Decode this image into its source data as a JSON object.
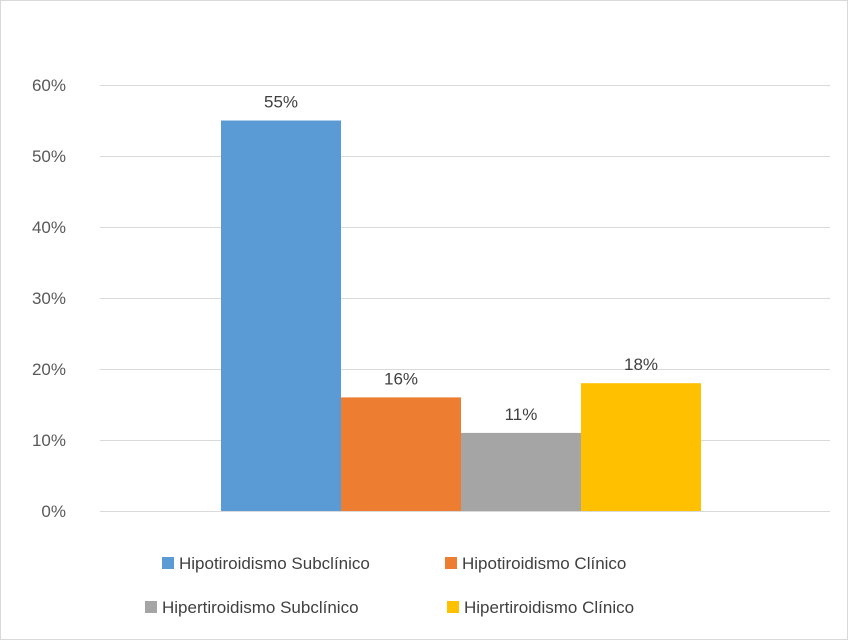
{
  "chart_data": {
    "type": "bar",
    "title": "",
    "xlabel": "",
    "ylabel": "",
    "ylim": [
      0,
      0.6
    ],
    "y_ticks": [
      0,
      0.1,
      0.2,
      0.3,
      0.4,
      0.5,
      0.6
    ],
    "y_tick_labels": [
      "0%",
      "10%",
      "20%",
      "30%",
      "40%",
      "50%",
      "60%"
    ],
    "grid": true,
    "legend_position": "bottom",
    "series": [
      {
        "name": "Hipotiroidismo Subclínico",
        "value": 0.55,
        "label": "55%",
        "color": "#5b9bd5"
      },
      {
        "name": "Hipotiroidismo Clínico",
        "value": 0.16,
        "label": "16%",
        "color": "#ed7d31"
      },
      {
        "name": "Hipertiroidismo Subclínico",
        "value": 0.11,
        "label": "11%",
        "color": "#a5a5a5"
      },
      {
        "name": "Hipertiroidismo Clínico",
        "value": 0.18,
        "label": "18%",
        "color": "#ffc000"
      }
    ]
  }
}
